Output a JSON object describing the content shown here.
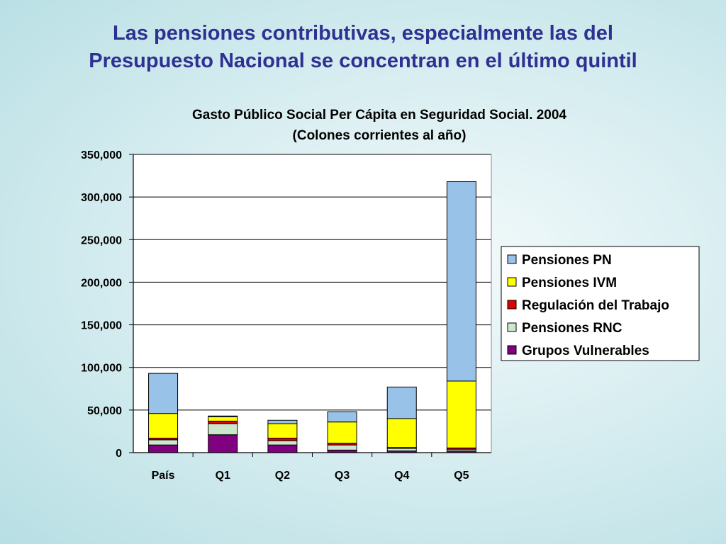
{
  "slide_title": {
    "line1": "Las pensiones contributivas, especialmente las del",
    "line2": "Presupuesto Nacional se concentran en el último quintil"
  },
  "chart_data": {
    "type": "bar",
    "stacked": true,
    "title": "Gasto Público Social Per Cápita en Seguridad Social. 2004",
    "subtitle": "(Colones corrientes al año)",
    "xlabel": "",
    "ylabel": "",
    "ylim": [
      0,
      350000
    ],
    "yticks": [
      0,
      50000,
      100000,
      150000,
      200000,
      250000,
      300000,
      350000
    ],
    "ytick_labels": [
      "0",
      "50,000",
      "100,000",
      "150,000",
      "200,000",
      "250,000",
      "300,000",
      "350,000"
    ],
    "grid": true,
    "legend_position": "right",
    "categories": [
      "País",
      "Q1",
      "Q2",
      "Q3",
      "Q4",
      "Q5"
    ],
    "series": [
      {
        "name": "Grupos Vulnerables",
        "color": "#800080",
        "values": [
          9000,
          21000,
          9000,
          3000,
          2000,
          2000
        ]
      },
      {
        "name": "Pensiones RNC",
        "color": "#cce8cc",
        "values": [
          6000,
          13000,
          5000,
          6000,
          3000,
          2000
        ]
      },
      {
        "name": "Regulación del Trabajo",
        "color": "#e00000",
        "values": [
          2000,
          3000,
          3000,
          2000,
          1000,
          1500
        ]
      },
      {
        "name": "Pensiones IVM",
        "color": "#ffff00",
        "values": [
          29000,
          5000,
          17000,
          25000,
          34000,
          78500
        ]
      },
      {
        "name": "Pensiones PN",
        "color": "#99c2e8",
        "values": [
          47000,
          1000,
          4000,
          12000,
          37000,
          234000
        ]
      }
    ],
    "legend_order": [
      "Pensiones PN",
      "Pensiones IVM",
      "Regulación del Trabajo",
      "Pensiones RNC",
      "Grupos Vulnerables"
    ]
  }
}
